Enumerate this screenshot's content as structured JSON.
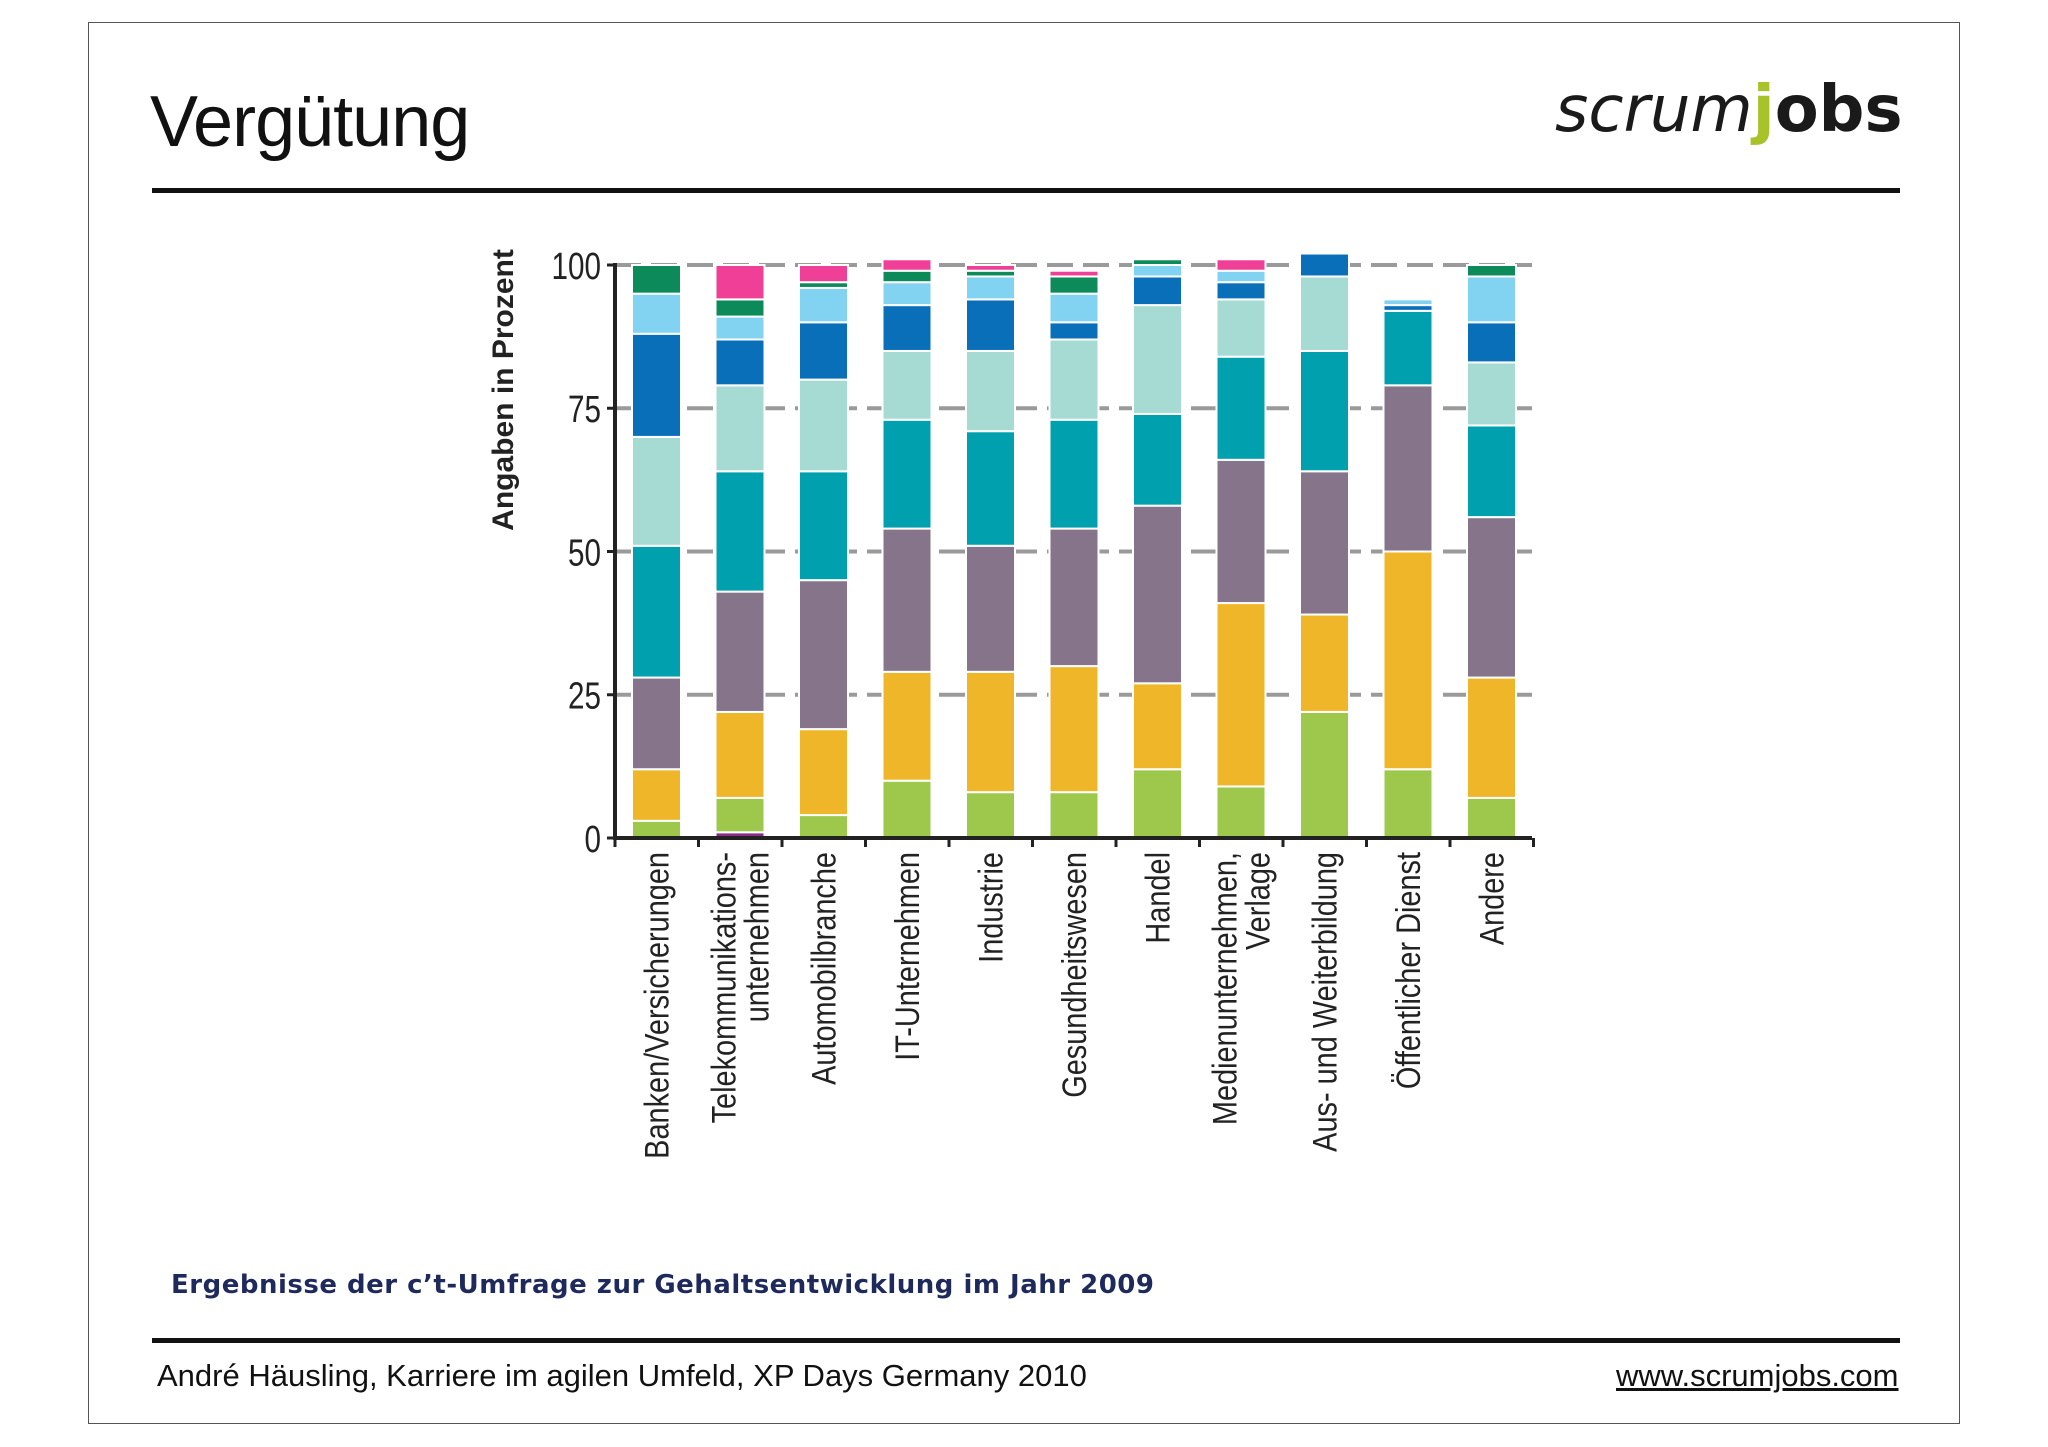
{
  "slide": {
    "title": "Vergütung",
    "logo": {
      "part1": "scrum",
      "part2": "j",
      "part3": "obs"
    },
    "caption": "Ergebnisse der c’t-Umfrage zur Gehaltsentwicklung im Jahr 2009",
    "footer_left": "André Häusling, Karriere im agilen Umfeld, XP Days Germany 2010",
    "footer_right": "www.scrumjobs.com"
  },
  "chart_data": {
    "type": "bar",
    "stacked": true,
    "title": "",
    "xlabel": "",
    "ylabel": "Angaben in Prozent",
    "ylim": [
      0,
      100
    ],
    "yticks": [
      0,
      25,
      50,
      75,
      100
    ],
    "grid": true,
    "categories": [
      [
        "Banken/Versicherungen"
      ],
      [
        "Telekommunikations-",
        "unternehmen"
      ],
      [
        "Automobilbranche"
      ],
      [
        "IT-Unternehmen"
      ],
      [
        "Industrie"
      ],
      [
        "Gesundheitswesen"
      ],
      [
        "Handel"
      ],
      [
        "Medienunternehmen,",
        "Verlage"
      ],
      [
        "Aus- und Weiterbildung"
      ],
      [
        "Öffentlicher Dienst"
      ],
      [
        "Andere"
      ]
    ],
    "series_colors": [
      "#8a2a8a",
      "#9dc84b",
      "#f0b62a",
      "#86748a",
      "#00a0ae",
      "#a6dbd3",
      "#0a6fb9",
      "#82d3f2",
      "#0d8a5a",
      "#ef3f97"
    ],
    "series": [
      {
        "values": [
          0,
          1,
          0,
          0,
          0,
          0,
          0,
          0,
          0,
          0,
          0
        ]
      },
      {
        "values": [
          3,
          6,
          4,
          10,
          8,
          8,
          12,
          9,
          22,
          12,
          7
        ]
      },
      {
        "values": [
          9,
          15,
          15,
          19,
          21,
          22,
          15,
          32,
          17,
          38,
          21
        ]
      },
      {
        "values": [
          16,
          21,
          26,
          25,
          22,
          24,
          31,
          25,
          25,
          29,
          28
        ]
      },
      {
        "values": [
          23,
          21,
          19,
          19,
          20,
          19,
          16,
          18,
          21,
          13,
          16
        ]
      },
      {
        "values": [
          19,
          15,
          16,
          12,
          14,
          14,
          19,
          10,
          13,
          0,
          11
        ]
      },
      {
        "values": [
          18,
          8,
          10,
          8,
          9,
          3,
          5,
          3,
          4,
          1,
          7
        ]
      },
      {
        "values": [
          7,
          4,
          6,
          4,
          4,
          5,
          2,
          2,
          0,
          1,
          8
        ]
      },
      {
        "values": [
          5,
          3,
          1,
          2,
          1,
          3,
          1,
          0,
          0,
          0,
          2
        ]
      },
      {
        "values": [
          0,
          6,
          3,
          2,
          1,
          1,
          0,
          2,
          0,
          0,
          0
        ]
      }
    ]
  }
}
